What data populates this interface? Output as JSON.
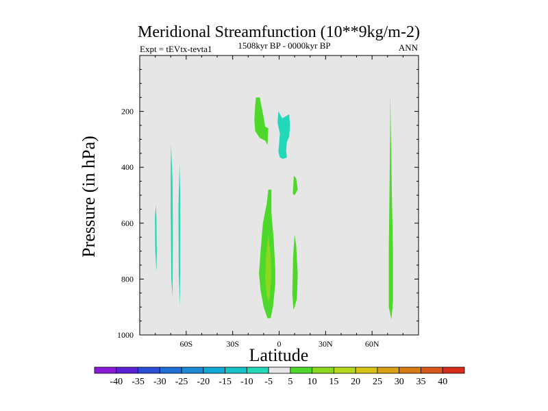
{
  "chart_data": {
    "type": "filled-contour",
    "title": "Meridional Streamfunction (10**9kg/m-2)",
    "subtitle_left": "Expt = tEVtx-tevta1",
    "subtitle_center": "1508kyr BP - 0000kyr BP",
    "subtitle_right": "ANN",
    "xlabel": "Latitude",
    "ylabel": "Pressure (in hPa)",
    "xlim": [
      -90,
      90
    ],
    "ylim": [
      0,
      1000
    ],
    "y_inverted": true,
    "background_color": "#e6e6e6",
    "x_ticks": [
      {
        "value": -60,
        "label": "60S"
      },
      {
        "value": -30,
        "label": "30S"
      },
      {
        "value": 0,
        "label": "0"
      },
      {
        "value": 30,
        "label": "30N"
      },
      {
        "value": 60,
        "label": "60N"
      }
    ],
    "y_ticks": [
      {
        "value": 200,
        "label": "200"
      },
      {
        "value": 400,
        "label": "400"
      },
      {
        "value": 600,
        "label": "600"
      },
      {
        "value": 800,
        "label": "800"
      },
      {
        "value": 1000,
        "label": "1000"
      }
    ],
    "colorbar": {
      "levels": [
        "-40",
        "-35",
        "-30",
        "-25",
        "-20",
        "-15",
        "-10",
        "-5",
        "5",
        "10",
        "15",
        "20",
        "25",
        "30",
        "35",
        "40"
      ],
      "colors": [
        "#8a1ad6",
        "#5b22d4",
        "#2a4fd6",
        "#1f6fd8",
        "#1a8ad6",
        "#10a8d4",
        "#14c2c8",
        "#22d8b8",
        "#e6e6e6",
        "#4fd82c",
        "#8ad820",
        "#b4d81a",
        "#d8c414",
        "#d8a012",
        "#d87a12",
        "#d8561a",
        "#d82c1c"
      ]
    },
    "regions": [
      {
        "level": "-10",
        "color": "#22d8b8",
        "points": [
          [
            -79.6,
            535
          ],
          [
            -79.2,
            580
          ],
          [
            -79.0,
            700
          ],
          [
            -79.2,
            775
          ],
          [
            -80.0,
            700
          ],
          [
            -80.2,
            580
          ]
        ]
      },
      {
        "level": "-10",
        "color": "#22d8b8",
        "points": [
          [
            -69.8,
            315
          ],
          [
            -68.8,
            450
          ],
          [
            -68.6,
            650
          ],
          [
            -68.8,
            865
          ],
          [
            -69.6,
            800
          ],
          [
            -70.0,
            550
          ],
          [
            -70.0,
            400
          ]
        ]
      },
      {
        "level": "-10",
        "color": "#22d8b8",
        "points": [
          [
            -64.3,
            385
          ],
          [
            -63.8,
            500
          ],
          [
            -63.8,
            750
          ],
          [
            -64.1,
            900
          ],
          [
            -64.8,
            780
          ],
          [
            -65.0,
            550
          ]
        ]
      },
      {
        "level": "-10",
        "color": "#22d8b8",
        "points": [
          [
            -0.5,
            200
          ],
          [
            2.0,
            225
          ],
          [
            3.5,
            220
          ],
          [
            6.5,
            210
          ],
          [
            7.0,
            250
          ],
          [
            6.5,
            290
          ],
          [
            5.0,
            310
          ],
          [
            4.5,
            340
          ],
          [
            5.0,
            365
          ],
          [
            2.5,
            370
          ],
          [
            0.5,
            365
          ],
          [
            -0.5,
            345
          ],
          [
            0.5,
            280
          ],
          [
            -1.0,
            240
          ]
        ]
      },
      {
        "level": "5",
        "color": "#4fd82c",
        "points": [
          [
            -15.0,
            150
          ],
          [
            -12.5,
            150
          ],
          [
            -10.0,
            220
          ],
          [
            -9.0,
            255
          ],
          [
            -7.0,
            260
          ],
          [
            -7.5,
            320
          ],
          [
            -9.0,
            305
          ],
          [
            -12.5,
            295
          ],
          [
            -15.5,
            270
          ],
          [
            -16.0,
            230
          ],
          [
            -15.5,
            180
          ]
        ]
      },
      {
        "level": "5",
        "color": "#4fd82c",
        "points": [
          [
            -7.0,
            480
          ],
          [
            -5.0,
            480
          ],
          [
            -5.0,
            560
          ],
          [
            -3.5,
            660
          ],
          [
            -2.5,
            760
          ],
          [
            -2.5,
            820
          ],
          [
            -4.0,
            900
          ],
          [
            -5.5,
            940
          ],
          [
            -7.5,
            940
          ],
          [
            -10.0,
            900
          ],
          [
            -12.0,
            840
          ],
          [
            -13.0,
            780
          ],
          [
            -12.0,
            700
          ],
          [
            -10.5,
            600
          ],
          [
            -8.0,
            530
          ]
        ]
      },
      {
        "level": "10",
        "color": "#8ad820",
        "points": [
          [
            -7.0,
            640
          ],
          [
            -5.5,
            720
          ],
          [
            -5.0,
            780
          ],
          [
            -5.5,
            820
          ],
          [
            -6.5,
            880
          ],
          [
            -8.0,
            860
          ],
          [
            -9.0,
            800
          ],
          [
            -8.5,
            720
          ]
        ]
      },
      {
        "level": "5",
        "color": "#4fd82c",
        "points": [
          [
            9.5,
            430
          ],
          [
            11.0,
            440
          ],
          [
            12.0,
            480
          ],
          [
            10.0,
            500
          ],
          [
            8.8,
            495
          ],
          [
            9.2,
            460
          ]
        ]
      },
      {
        "level": "5",
        "color": "#4fd82c",
        "points": [
          [
            10.0,
            640
          ],
          [
            11.0,
            680
          ],
          [
            12.0,
            780
          ],
          [
            11.5,
            870
          ],
          [
            10.0,
            900
          ],
          [
            9.2,
            910
          ],
          [
            8.5,
            850
          ],
          [
            9.0,
            720
          ]
        ]
      },
      {
        "level": "5",
        "color": "#4fd82c",
        "points": [
          [
            71.8,
            140
          ],
          [
            72.2,
            300
          ],
          [
            72.8,
            500
          ],
          [
            73.5,
            700
          ],
          [
            73.5,
            880
          ],
          [
            72.5,
            945
          ],
          [
            70.8,
            900
          ],
          [
            70.8,
            700
          ],
          [
            71.2,
            500
          ],
          [
            71.6,
            300
          ]
        ]
      }
    ]
  }
}
